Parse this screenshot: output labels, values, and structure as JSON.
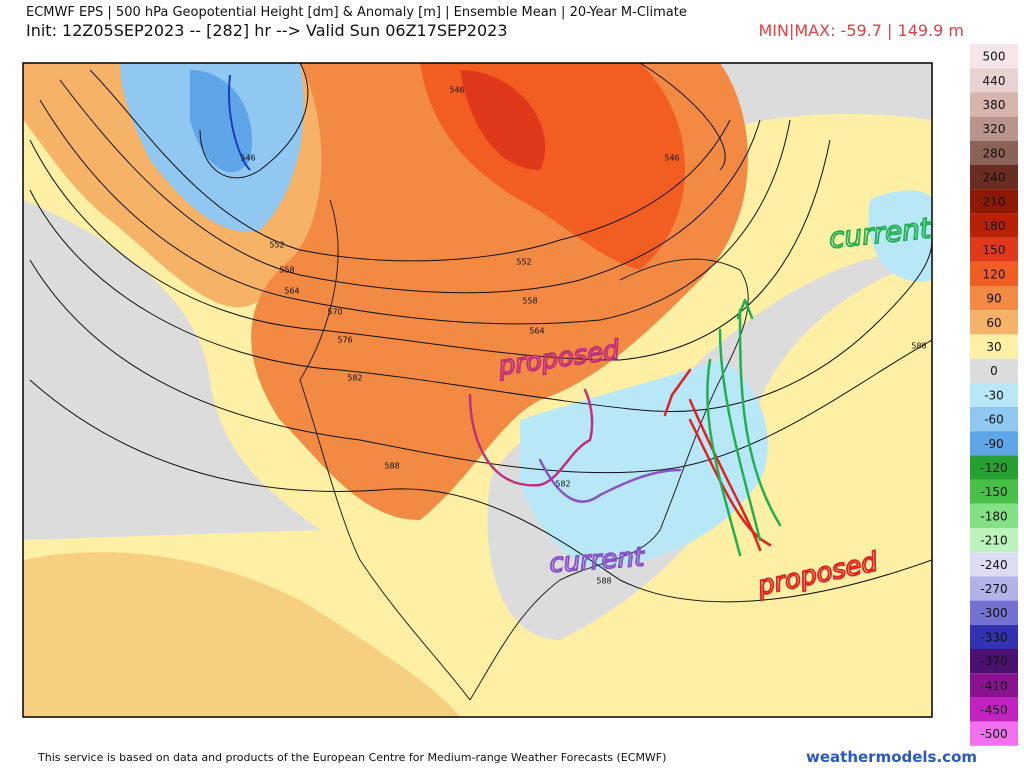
{
  "header": {
    "title": "ECMWF EPS | 500 hPa Geopotential Height [dm] & Anomaly [m] | Ensemble Mean | 20-Year M-Climate",
    "subtitle": "Init: 12Z05SEP2023 -- [282] hr --> Valid Sun 06Z17SEP2023",
    "minmax": "MIN|MAX: -59.7 | 149.9 m"
  },
  "map": {
    "contour_labels": [
      546,
      546,
      546,
      552,
      552,
      558,
      558,
      564,
      564,
      570,
      576,
      582,
      582,
      588,
      588,
      588
    ],
    "annotations": [
      "proposed",
      "current",
      "current",
      "proposed"
    ]
  },
  "colorbar": {
    "labels": [
      500,
      440,
      380,
      320,
      280,
      240,
      210,
      180,
      150,
      120,
      90,
      60,
      30,
      0,
      -30,
      -60,
      -90,
      -120,
      -150,
      -180,
      -210,
      -240,
      -270,
      -300,
      -330,
      -370,
      -410,
      -450,
      -500
    ],
    "colors": [
      "#f6e6ea",
      "#e9d2d2",
      "#d6b4ac",
      "#b8948a",
      "#8c6258",
      "#6a2c22",
      "#8c1a04",
      "#b82204",
      "#e0381a",
      "#f25e22",
      "#f28a44",
      "#f6b266",
      "#fdf0a4",
      "#dcdcdc",
      "#b8e8f8",
      "#90c8f2",
      "#5ea6e8",
      "#26a030",
      "#48c048",
      "#84e084",
      "#bcf2bc",
      "#dcdcf2",
      "#b2b2ea",
      "#7272d2",
      "#3232b2",
      "#4c1070",
      "#8a1290",
      "#c222c2",
      "#f070f0"
    ]
  },
  "footer": {
    "credit": "This service is based on data and products of the European Centre for Medium-range Weather Forecasts (ECMWF)",
    "source": "weathermodels.com"
  }
}
